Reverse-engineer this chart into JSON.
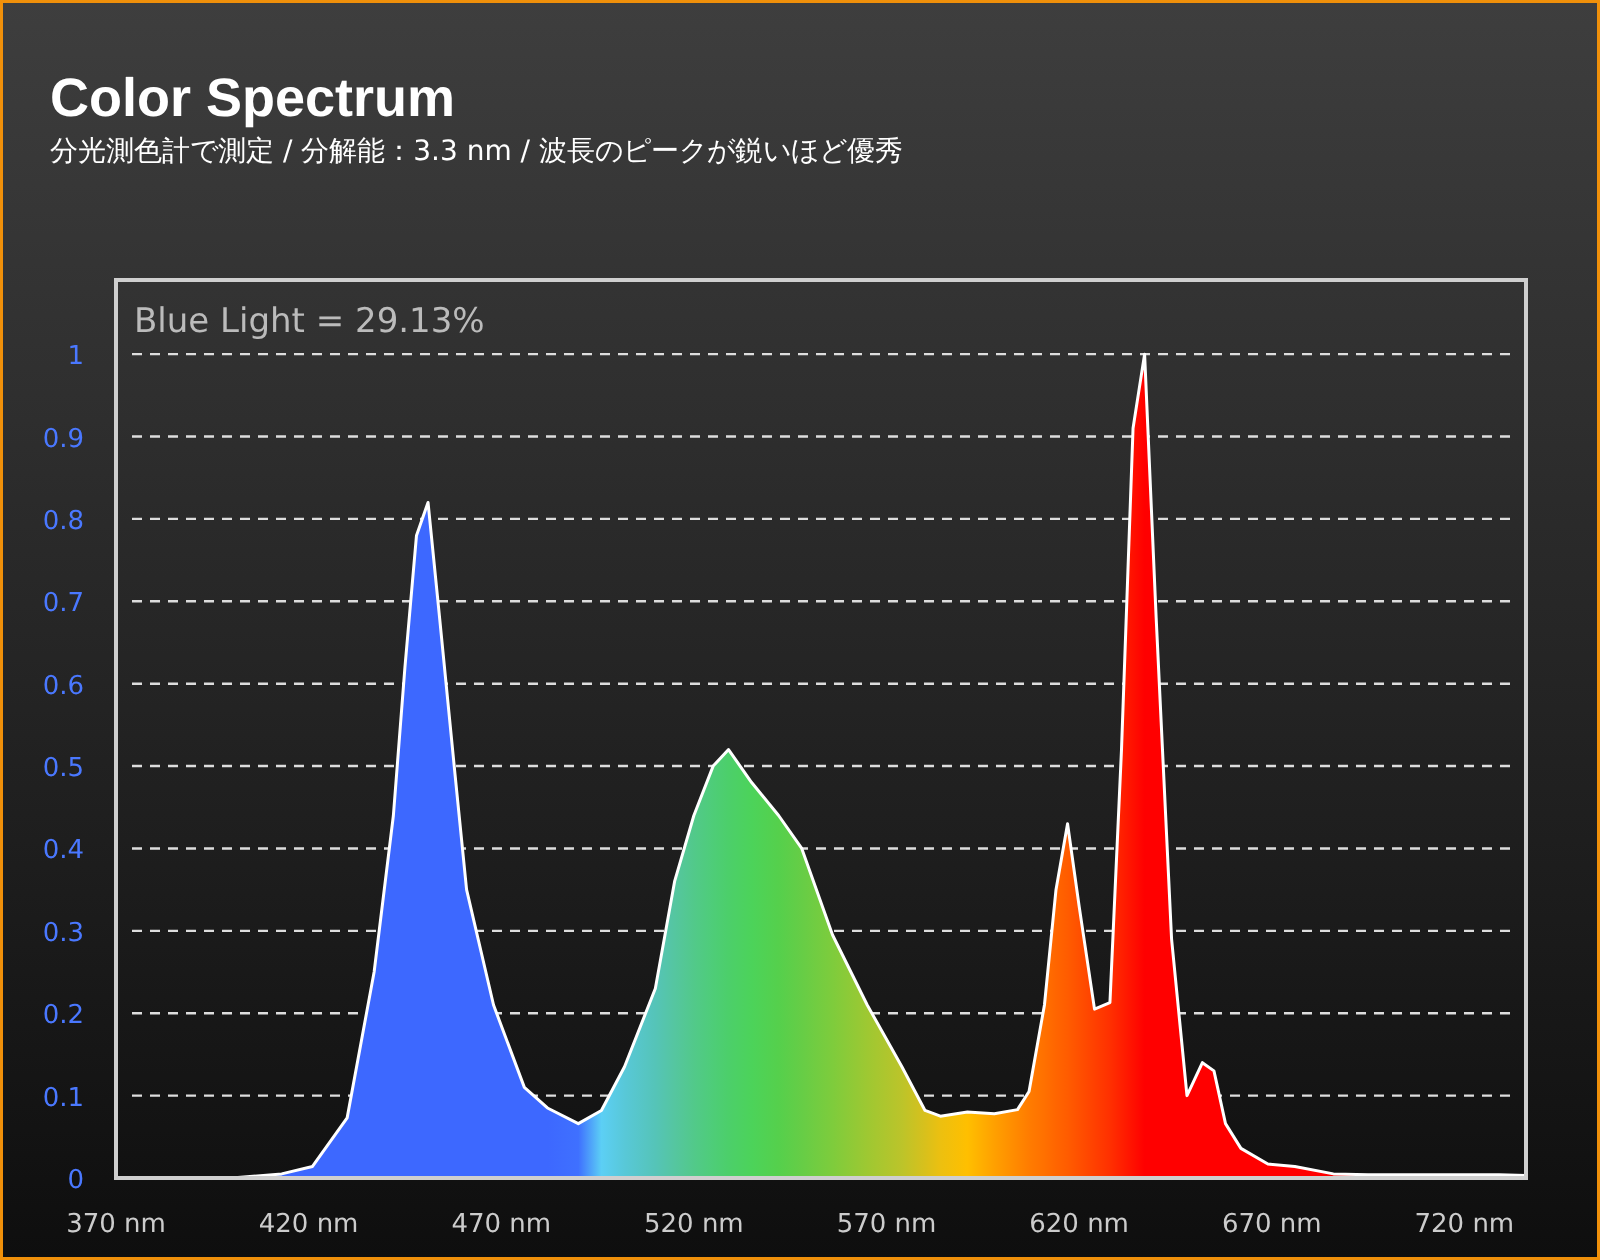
{
  "chart_data": {
    "type": "area",
    "title": "Color Spectrum",
    "subtitle": "分光測色計で測定 / 分解能：3.3 nm / 波長のピークが鋭いほど優秀",
    "annotations": [
      "Blue Light = 29.13%"
    ],
    "x": [
      370,
      400,
      413,
      421,
      430,
      437,
      442,
      445,
      448,
      451,
      454,
      458,
      461,
      468,
      476,
      482,
      490,
      496,
      502,
      510,
      515,
      520,
      525,
      529,
      535,
      542,
      548,
      556,
      565,
      574,
      580,
      584,
      591,
      598,
      604,
      607,
      611,
      614,
      617,
      620,
      624,
      628,
      631,
      634,
      637,
      640,
      644,
      648,
      652,
      655,
      658,
      662,
      669,
      676,
      686,
      695,
      729,
      736
    ],
    "series": [
      {
        "color": "#ffffff",
        "values": [
          0,
          0,
          0.005,
          0.014,
          0.073,
          0.25,
          0.44,
          0.62,
          0.78,
          0.82,
          0.68,
          0.49,
          0.35,
          0.21,
          0.11,
          0.085,
          0.066,
          0.082,
          0.135,
          0.23,
          0.36,
          0.44,
          0.5,
          0.52,
          0.48,
          0.44,
          0.4,
          0.295,
          0.21,
          0.135,
          0.082,
          0.075,
          0.08,
          0.078,
          0.083,
          0.105,
          0.21,
          0.35,
          0.43,
          0.33,
          0.205,
          0.213,
          0.52,
          0.91,
          1.0,
          0.68,
          0.29,
          0.1,
          0.14,
          0.13,
          0.066,
          0.036,
          0.017,
          0.014,
          0.005,
          0.004,
          0.004,
          0.003
        ],
        "colors": [
          "#3d68ff",
          "#3d68ff",
          "#3d68ff",
          "#3d68ff",
          "#3d68ff",
          "#3d68ff",
          "#3d68ff",
          "#3d68ff",
          "#3d68ff",
          "#3d68ff",
          "#3d68ff",
          "#3d68ff",
          "#3d68ff",
          "#3d68ff",
          "#3d68ff",
          "#3d68ff",
          "#3f70ff",
          "#5ccff5",
          "#58c8d8",
          "#55c4b8",
          "#55c6a0",
          "#52c98a",
          "#4ecd78",
          "#4ccf6a",
          "#4cd35a",
          "#55d04c",
          "#66cd46",
          "#7ecc3c",
          "#9ec832",
          "#bcc42a",
          "#d8c01c",
          "#ecc010",
          "#ffbf00",
          "#ffa000",
          "#ff8800",
          "#ff7c00",
          "#ff7000",
          "#ff6500",
          "#ff5c00",
          "#ff5000",
          "#ff4000",
          "#ff3000",
          "#ff2000",
          "#ff1000",
          "#ff0000",
          "#ff0000",
          "#ff0000",
          "#ff0000",
          "#ff0000",
          "#ff0000",
          "#ff0000",
          "#ff0000",
          "#ff0000",
          "#ff0000",
          "#ff0000",
          "#ff0000",
          "#ff0000",
          "#ff0000"
        ]
      }
    ],
    "xlim": [
      370,
      736
    ],
    "xticks": [
      {
        "value": 370,
        "label": "370 nm"
      },
      {
        "value": 420,
        "label": "420 nm"
      },
      {
        "value": 470,
        "label": "470 nm"
      },
      {
        "value": 520,
        "label": "520 nm"
      },
      {
        "value": 570,
        "label": "570 nm"
      },
      {
        "value": 620,
        "label": "620 nm"
      },
      {
        "value": 670,
        "label": "670 nm"
      },
      {
        "value": 720,
        "label": "720 nm"
      }
    ],
    "ylim": [
      0,
      1.09
    ],
    "yticks": [
      0,
      0.1,
      0.2,
      0.3,
      0.4,
      0.5,
      0.6,
      0.7,
      0.8,
      0.9,
      1
    ],
    "grid": "y"
  }
}
